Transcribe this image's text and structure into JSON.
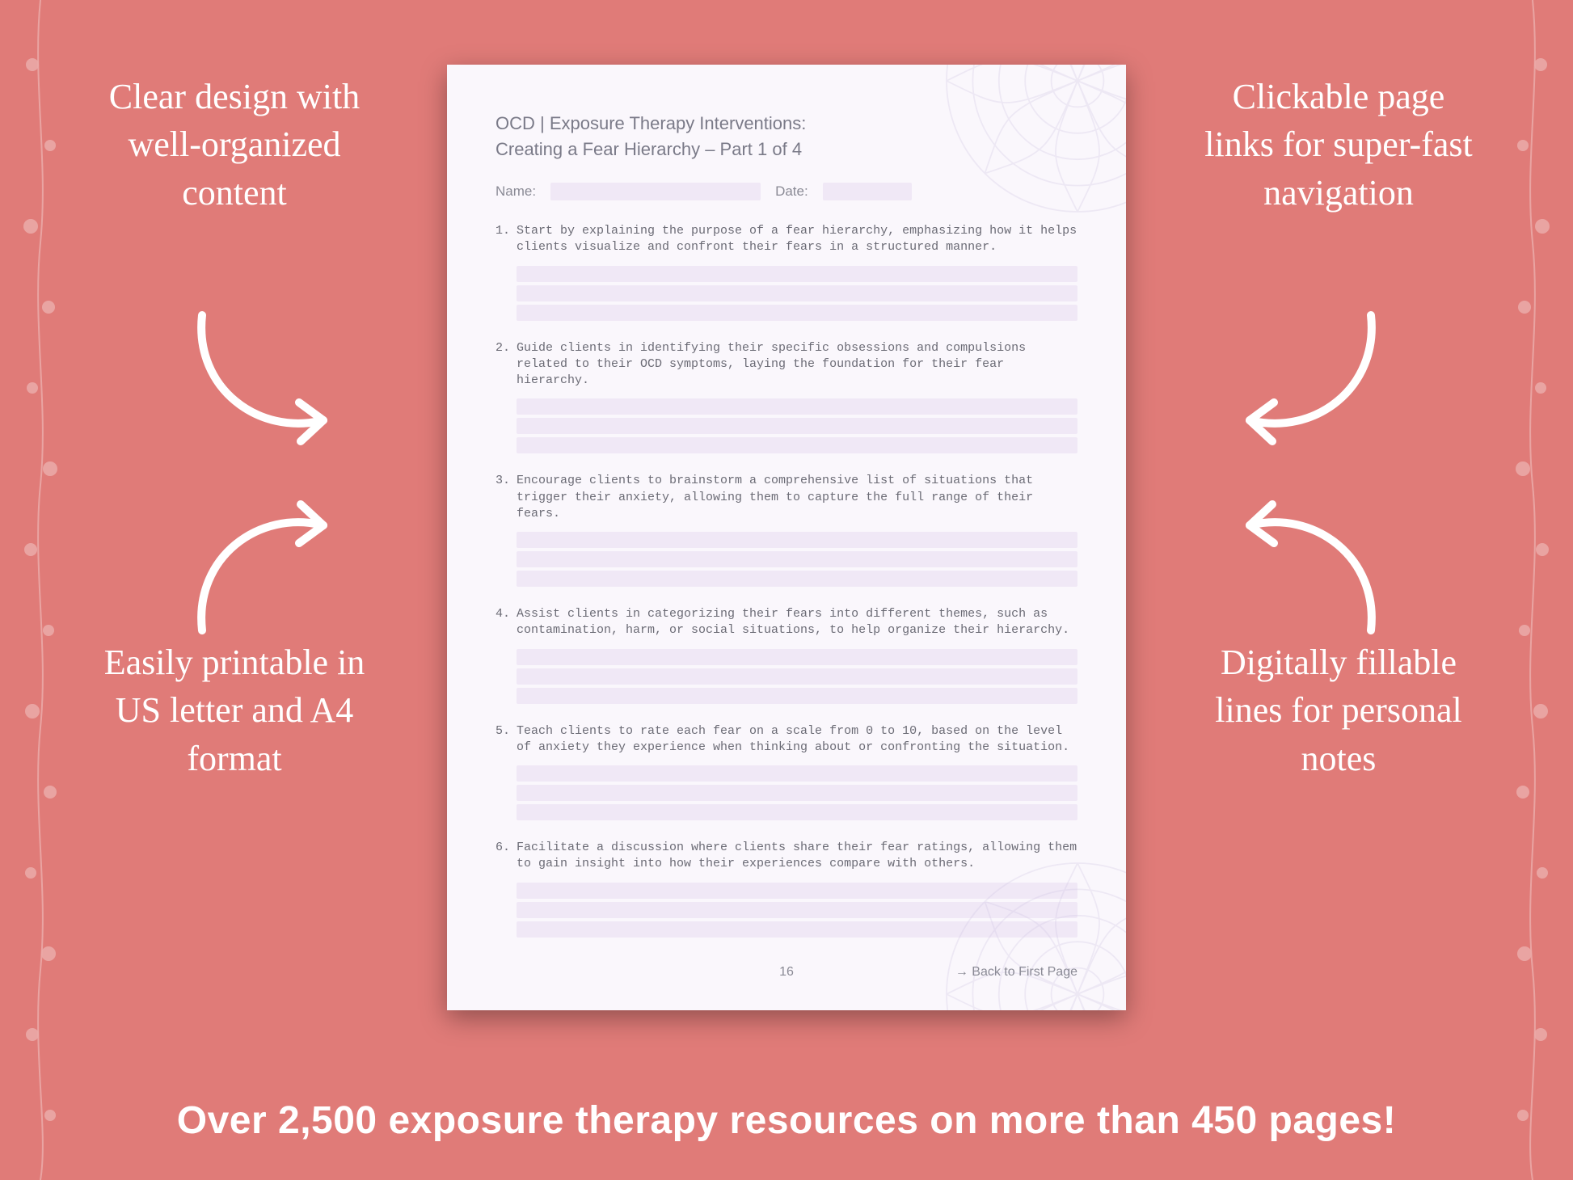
{
  "background_color": "#e07b78",
  "callouts": {
    "top_left": "Clear design with well-organized content",
    "top_right": "Clickable page links for super-fast navigation",
    "bottom_left": "Easily printable in US letter and A4 format",
    "bottom_right": "Digitally fillable lines for personal notes"
  },
  "banner": "Over 2,500 exposure therapy resources on more than 450 pages!",
  "document": {
    "title": "OCD | Exposure Therapy Interventions:",
    "subtitle": "Creating a Fear Hierarchy  – Part 1 of 4",
    "name_label": "Name:",
    "date_label": "Date:",
    "page_number": "16",
    "back_link": "→ Back to First Page",
    "items": [
      {
        "n": "1.",
        "text": "Start by explaining the purpose of a fear hierarchy, emphasizing how it helps clients visualize and confront their fears in a structured manner."
      },
      {
        "n": "2.",
        "text": "Guide clients in identifying their specific obsessions and compulsions related to their OCD symptoms, laying the foundation for their fear hierarchy."
      },
      {
        "n": "3.",
        "text": "Encourage clients to brainstorm a comprehensive list of situations that trigger their anxiety, allowing them to capture the full range of their fears."
      },
      {
        "n": "4.",
        "text": "Assist clients in categorizing their fears into different themes, such as contamination, harm, or social situations, to help organize their hierarchy."
      },
      {
        "n": "5.",
        "text": "Teach clients to rate each fear on a scale from 0 to 10, based on the level of anxiety they experience when thinking about or confronting the situation."
      },
      {
        "n": "6.",
        "text": "Facilitate a discussion where clients share their fear ratings, allowing them to gain insight into how their experiences compare with others."
      }
    ],
    "fill_line_color": "#f0e8f6",
    "page_bg": "#faf7fc",
    "text_color": "#6b6b75"
  },
  "style": {
    "callout_color": "#ffffff",
    "callout_fontsize": 44,
    "banner_fontsize": 48,
    "arrow_color": "#ffffff",
    "arrow_stroke": 10
  }
}
